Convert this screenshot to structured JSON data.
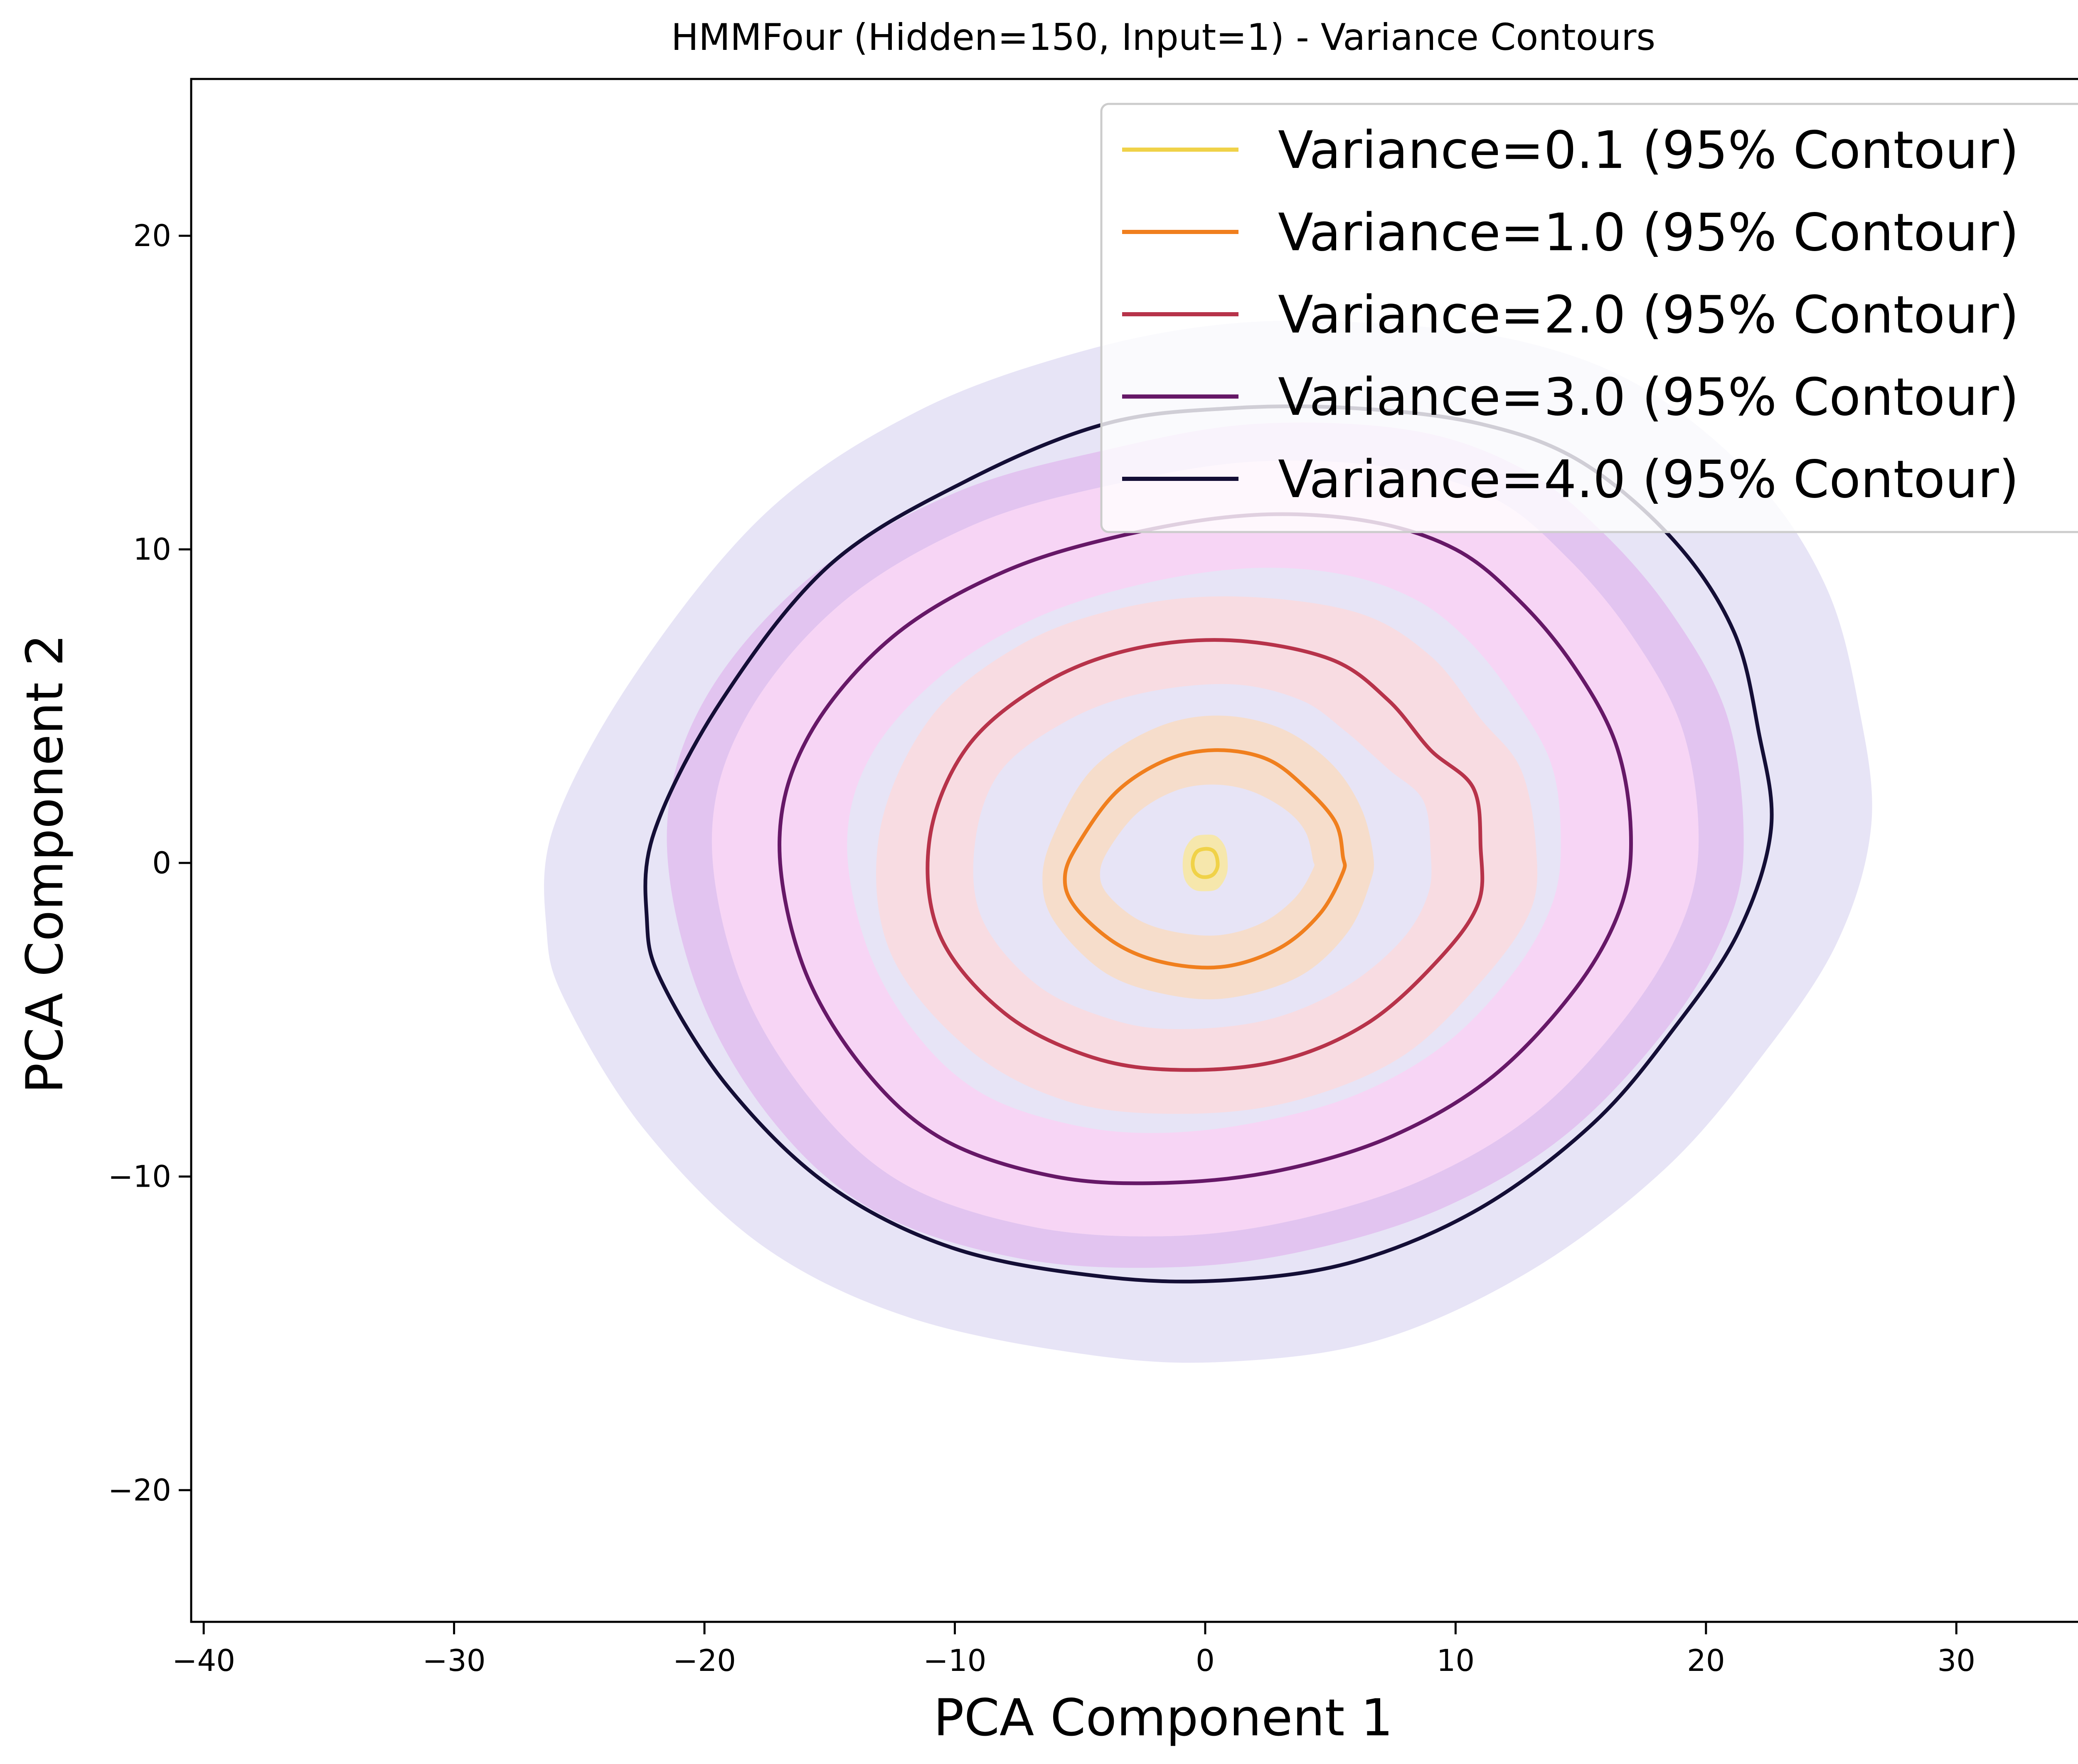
{
  "chart_data": {
    "type": "contour",
    "title": "HMMFour (Hidden=150, Input=1) - Variance Contours",
    "xlabel": "PCA Component 1",
    "ylabel": "PCA Component 2",
    "xlim": [
      -40.5,
      37
    ],
    "ylim": [
      -24.2,
      25
    ],
    "xticks": [
      -40,
      -30,
      -20,
      -10,
      0,
      10,
      20,
      30
    ],
    "xtick_labels": [
      "−40",
      "−30",
      "−20",
      "−10",
      "0",
      "10",
      "20",
      "30"
    ],
    "yticks": [
      -20,
      -10,
      0,
      10,
      20
    ],
    "ytick_labels": [
      "−20",
      "−10",
      "0",
      "10",
      "20"
    ],
    "grid": false,
    "legend_position": "top-right",
    "series": [
      {
        "name": "Variance=0.1 (95% Contour)",
        "color": "#f0d248",
        "band_color": "#f7e7a8",
        "contour": [
          [
            0.5,
            -0.05
          ],
          [
            0.45,
            0.22
          ],
          [
            0.3,
            0.4
          ],
          [
            0,
            0.45
          ],
          [
            -0.3,
            0.38
          ],
          [
            -0.45,
            0.2
          ],
          [
            -0.5,
            -0.05
          ],
          [
            -0.42,
            -0.28
          ],
          [
            -0.22,
            -0.42
          ],
          [
            0.05,
            -0.45
          ],
          [
            0.3,
            -0.38
          ],
          [
            0.45,
            -0.22
          ]
        ],
        "band_outer": [
          [
            0.9,
            -0.05
          ],
          [
            0.8,
            0.5
          ],
          [
            0.45,
            0.85
          ],
          [
            0,
            0.9
          ],
          [
            -0.45,
            0.82
          ],
          [
            -0.8,
            0.45
          ],
          [
            -0.9,
            -0.05
          ],
          [
            -0.8,
            -0.55
          ],
          [
            -0.45,
            -0.85
          ],
          [
            0.05,
            -0.9
          ],
          [
            0.5,
            -0.82
          ],
          [
            0.82,
            -0.45
          ]
        ],
        "band_inner": []
      },
      {
        "name": "Variance=1.0 (95% Contour)",
        "color": "#f07f1e",
        "band_color": "#f7dcc8",
        "contour": [
          [
            5.5,
            0.2
          ],
          [
            5.2,
            1.3
          ],
          [
            4,
            2.4
          ],
          [
            2.5,
            3.3
          ],
          [
            0.5,
            3.6
          ],
          [
            -1.5,
            3.3
          ],
          [
            -3.5,
            2.3
          ],
          [
            -5,
            0.7
          ],
          [
            -5.6,
            -0.4
          ],
          [
            -5.2,
            -1.4
          ],
          [
            -3.5,
            -2.6
          ],
          [
            -1.5,
            -3.2
          ],
          [
            0.8,
            -3.3
          ],
          [
            3,
            -2.7
          ],
          [
            4.6,
            -1.6
          ],
          [
            5.5,
            -0.3
          ]
        ],
        "band_outer": [
          [
            6.7,
            0.3
          ],
          [
            6.2,
            1.8
          ],
          [
            5,
            3.2
          ],
          [
            3,
            4.3
          ],
          [
            0.5,
            4.7
          ],
          [
            -2,
            4.3
          ],
          [
            -4.5,
            3
          ],
          [
            -6,
            1
          ],
          [
            -6.5,
            -0.5
          ],
          [
            -6,
            -1.9
          ],
          [
            -4,
            -3.5
          ],
          [
            -1.5,
            -4.2
          ],
          [
            1,
            -4.3
          ],
          [
            3.8,
            -3.6
          ],
          [
            5.7,
            -2.2
          ],
          [
            6.6,
            -0.6
          ]
        ],
        "band_inner": [
          [
            4.3,
            0.1
          ],
          [
            4,
            1
          ],
          [
            3.2,
            1.7
          ],
          [
            1.8,
            2.3
          ],
          [
            0.3,
            2.5
          ],
          [
            -1.2,
            2.3
          ],
          [
            -2.7,
            1.6
          ],
          [
            -3.8,
            0.5
          ],
          [
            -4.2,
            -0.3
          ],
          [
            -3.9,
            -1
          ],
          [
            -2.7,
            -1.8
          ],
          [
            -1.2,
            -2.2
          ],
          [
            0.6,
            -2.3
          ],
          [
            2.3,
            -1.9
          ],
          [
            3.6,
            -1.1
          ],
          [
            4.3,
            -0.2
          ]
        ]
      },
      {
        "name": "Variance=2.0 (95% Contour)",
        "color": "#b7334a",
        "band_color": "#f9dbe0",
        "contour": [
          [
            11,
            0.5
          ],
          [
            10.7,
            2.4
          ],
          [
            9,
            3.6
          ],
          [
            7.3,
            5.2
          ],
          [
            5,
            6.5
          ],
          [
            1,
            7.1
          ],
          [
            -3,
            6.8
          ],
          [
            -6.5,
            5.7
          ],
          [
            -9.5,
            3.7
          ],
          [
            -11,
            0.8
          ],
          [
            -10.6,
            -2.3
          ],
          [
            -8,
            -4.8
          ],
          [
            -4.5,
            -6.2
          ],
          [
            -1,
            -6.6
          ],
          [
            3,
            -6.3
          ],
          [
            6.5,
            -5.1
          ],
          [
            9.3,
            -3.1
          ],
          [
            10.9,
            -1.3
          ]
        ],
        "band_outer": [
          [
            13.2,
            0.6
          ],
          [
            12.6,
            3
          ],
          [
            11,
            4.6
          ],
          [
            9,
            6.6
          ],
          [
            6,
            8
          ],
          [
            1,
            8.5
          ],
          [
            -3.5,
            8.1
          ],
          [
            -7.5,
            6.9
          ],
          [
            -11,
            4.6
          ],
          [
            -13,
            1
          ],
          [
            -12.6,
            -2.8
          ],
          [
            -9.5,
            -5.9
          ],
          [
            -5.5,
            -7.6
          ],
          [
            -1,
            -8
          ],
          [
            3.5,
            -7.6
          ],
          [
            7.8,
            -6.2
          ],
          [
            11,
            -3.8
          ],
          [
            13,
            -1.5
          ]
        ],
        "band_inner": [
          [
            9,
            0.4
          ],
          [
            8.7,
            2
          ],
          [
            7.3,
            3
          ],
          [
            5.6,
            4.2
          ],
          [
            3.8,
            5.2
          ],
          [
            1,
            5.7
          ],
          [
            -2.6,
            5.4
          ],
          [
            -5.6,
            4.5
          ],
          [
            -8.2,
            2.9
          ],
          [
            -9.2,
            0.6
          ],
          [
            -8.9,
            -1.8
          ],
          [
            -6.7,
            -3.9
          ],
          [
            -3.7,
            -5
          ],
          [
            -1,
            -5.3
          ],
          [
            2.5,
            -5
          ],
          [
            5.5,
            -4
          ],
          [
            7.8,
            -2.5
          ],
          [
            8.9,
            -1
          ]
        ]
      },
      {
        "name": "Variance=3.0 (95% Contour)",
        "color": "#661867",
        "band_color": "#f8d4f4",
        "contour": [
          [
            17,
            1
          ],
          [
            16.4,
            3.8
          ],
          [
            14.7,
            6.3
          ],
          [
            12.5,
            8.4
          ],
          [
            10,
            10
          ],
          [
            6.5,
            10.9
          ],
          [
            2,
            11.1
          ],
          [
            -3,
            10.5
          ],
          [
            -8,
            9.3
          ],
          [
            -12.5,
            7.2
          ],
          [
            -15.8,
            4.1
          ],
          [
            -17,
            0.8
          ],
          [
            -16.1,
            -3.2
          ],
          [
            -13.7,
            -6.5
          ],
          [
            -10.5,
            -8.8
          ],
          [
            -6,
            -10
          ],
          [
            -1.5,
            -10.2
          ],
          [
            3,
            -9.8
          ],
          [
            7.5,
            -8.7
          ],
          [
            11.5,
            -6.8
          ],
          [
            14.8,
            -4
          ],
          [
            16.6,
            -1.4
          ]
        ],
        "band_outer": [
          [
            19.7,
            1.1
          ],
          [
            19,
            4.4
          ],
          [
            17,
            7.3
          ],
          [
            14.5,
            9.7
          ],
          [
            11.6,
            11.6
          ],
          [
            7.5,
            12.6
          ],
          [
            2,
            12.8
          ],
          [
            -3.5,
            12.1
          ],
          [
            -9.2,
            10.8
          ],
          [
            -14.5,
            8.3
          ],
          [
            -18.3,
            4.7
          ],
          [
            -19.7,
            0.9
          ],
          [
            -18.6,
            -3.7
          ],
          [
            -15.8,
            -7.5
          ],
          [
            -12.1,
            -10.2
          ],
          [
            -6.9,
            -11.6
          ],
          [
            -1.5,
            -11.9
          ],
          [
            3.5,
            -11.4
          ],
          [
            8.7,
            -10.1
          ],
          [
            13.3,
            -7.9
          ],
          [
            17.1,
            -4.6
          ],
          [
            19.2,
            -1.6
          ]
        ],
        "band_outer_color": "#e2c4f0",
        "band_outer_ring": [
          [
            21.5,
            1.1
          ],
          [
            20.8,
            4.8
          ],
          [
            18.6,
            8
          ],
          [
            15.8,
            10.6
          ],
          [
            12.6,
            12.6
          ],
          [
            8.2,
            13.8
          ],
          [
            2,
            14
          ],
          [
            -3.8,
            13.2
          ],
          [
            -10,
            11.8
          ],
          [
            -15.8,
            9.1
          ],
          [
            -20,
            5.2
          ],
          [
            -21.5,
            1
          ],
          [
            -20.3,
            -4
          ],
          [
            -17.3,
            -8.2
          ],
          [
            -13.2,
            -11.1
          ],
          [
            -7.5,
            -12.6
          ],
          [
            -1.6,
            -12.9
          ],
          [
            3.8,
            -12.4
          ],
          [
            9.5,
            -11
          ],
          [
            14.5,
            -8.6
          ],
          [
            18.7,
            -5
          ],
          [
            21,
            -1.7
          ]
        ],
        "band_inner": [
          [
            14.2,
            0.9
          ],
          [
            13.8,
            3.2
          ],
          [
            12.3,
            5.3
          ],
          [
            10.5,
            7.1
          ],
          [
            8.4,
            8.4
          ],
          [
            5.5,
            9.2
          ],
          [
            1.8,
            9.4
          ],
          [
            -2.5,
            8.9
          ],
          [
            -6.8,
            7.8
          ],
          [
            -10.5,
            6
          ],
          [
            -13.3,
            3.5
          ],
          [
            -14.3,
            0.7
          ],
          [
            -13.5,
            -2.7
          ],
          [
            -11.5,
            -5.5
          ],
          [
            -8.8,
            -7.4
          ],
          [
            -5,
            -8.4
          ],
          [
            -1.4,
            -8.6
          ],
          [
            2.5,
            -8.2
          ],
          [
            6.3,
            -7.3
          ],
          [
            9.7,
            -5.7
          ],
          [
            12.4,
            -3.4
          ],
          [
            13.9,
            -1.2
          ]
        ]
      },
      {
        "name": "Variance=4.0 (95% Contour)",
        "color": "#140e36",
        "band_color": "#e6e3f6",
        "contour": [
          [
            22.6,
            1.1
          ],
          [
            22.1,
            4.2
          ],
          [
            21.1,
            7.4
          ],
          [
            18.7,
            10.3
          ],
          [
            15,
            12.8
          ],
          [
            11,
            14
          ],
          [
            6,
            14.5
          ],
          [
            1,
            14.5
          ],
          [
            -4,
            14
          ],
          [
            -9.5,
            12.2
          ],
          [
            -15,
            9.5
          ],
          [
            -19.3,
            5.2
          ],
          [
            -22,
            1
          ],
          [
            -22.3,
            -1.8
          ],
          [
            -21.7,
            -3.8
          ],
          [
            -19,
            -7.2
          ],
          [
            -15,
            -10.3
          ],
          [
            -10,
            -12.3
          ],
          [
            -4,
            -13.2
          ],
          [
            1,
            -13.3
          ],
          [
            6,
            -12.7
          ],
          [
            11,
            -11
          ],
          [
            15.5,
            -8.3
          ],
          [
            18.7,
            -5.3
          ],
          [
            21.3,
            -2.2
          ]
        ],
        "band_outer": [
          [
            26.6,
            1.2
          ],
          [
            26.1,
            5
          ],
          [
            24.8,
            8.8
          ],
          [
            22,
            12.2
          ],
          [
            17.6,
            15.1
          ],
          [
            12.8,
            16.6
          ],
          [
            7,
            17.2
          ],
          [
            1,
            17.2
          ],
          [
            -5,
            16.3
          ],
          [
            -11.5,
            14.4
          ],
          [
            -17.5,
            11.2
          ],
          [
            -22.7,
            6.1
          ],
          [
            -26,
            1.2
          ],
          [
            -26.3,
            -2.2
          ],
          [
            -25.5,
            -4.5
          ],
          [
            -22.4,
            -8.5
          ],
          [
            -17.7,
            -12.2
          ],
          [
            -11.8,
            -14.5
          ],
          [
            -4.5,
            -15.7
          ],
          [
            1,
            -15.9
          ],
          [
            7,
            -15.2
          ],
          [
            13,
            -13
          ],
          [
            18.3,
            -9.8
          ],
          [
            22.1,
            -6.3
          ],
          [
            25.2,
            -2.6
          ]
        ],
        "band_inner": []
      }
    ]
  }
}
